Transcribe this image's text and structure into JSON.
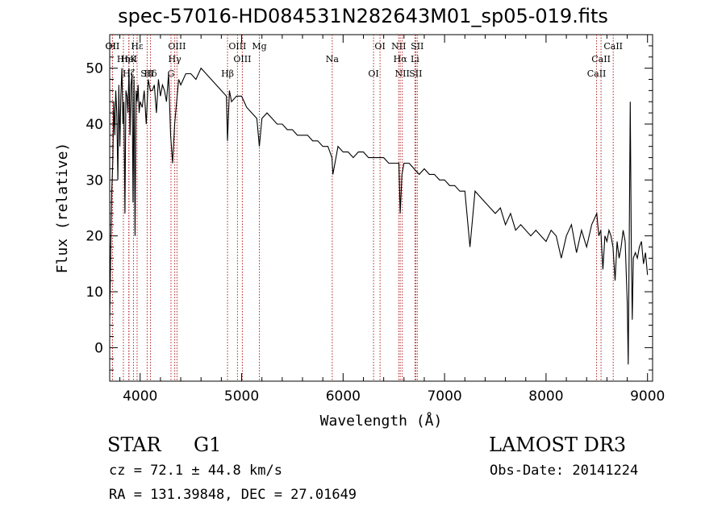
{
  "chart_data": {
    "type": "line",
    "title": "spec-57016-HD084531N282643M01_sp05-019.fits",
    "xlabel": "Wavelength (Å)",
    "ylabel": "Flux (relative)",
    "xlim": [
      3700,
      9050
    ],
    "ylim": [
      -6,
      56
    ],
    "xticks": [
      4000,
      5000,
      6000,
      7000,
      8000,
      9000
    ],
    "yticks": [
      0,
      10,
      20,
      30,
      40,
      50
    ],
    "spectrum": {
      "x": [
        3700,
        3710,
        3720,
        3730,
        3740,
        3750,
        3760,
        3770,
        3780,
        3790,
        3800,
        3810,
        3820,
        3830,
        3840,
        3850,
        3860,
        3870,
        3880,
        3890,
        3900,
        3910,
        3920,
        3930,
        3940,
        3950,
        3960,
        3970,
        3980,
        3990,
        4000,
        4020,
        4040,
        4060,
        4080,
        4100,
        4120,
        4140,
        4160,
        4180,
        4200,
        4220,
        4240,
        4260,
        4280,
        4300,
        4320,
        4340,
        4360,
        4380,
        4400,
        4450,
        4500,
        4550,
        4600,
        4650,
        4700,
        4750,
        4800,
        4850,
        4861,
        4880,
        4900,
        4950,
        5000,
        5050,
        5100,
        5150,
        5175,
        5200,
        5250,
        5300,
        5350,
        5400,
        5450,
        5500,
        5550,
        5600,
        5650,
        5700,
        5750,
        5800,
        5850,
        5890,
        5900,
        5950,
        6000,
        6050,
        6100,
        6150,
        6200,
        6250,
        6300,
        6350,
        6400,
        6450,
        6500,
        6550,
        6563,
        6580,
        6600,
        6650,
        6700,
        6750,
        6800,
        6850,
        6900,
        6950,
        7000,
        7050,
        7100,
        7150,
        7200,
        7250,
        7300,
        7350,
        7400,
        7450,
        7500,
        7550,
        7600,
        7650,
        7700,
        7750,
        7800,
        7850,
        7900,
        7950,
        8000,
        8050,
        8100,
        8150,
        8200,
        8250,
        8300,
        8350,
        8400,
        8450,
        8500,
        8520,
        8540,
        8560,
        8580,
        8600,
        8620,
        8640,
        8660,
        8680,
        8700,
        8720,
        8740,
        8760,
        8780,
        8800,
        8810,
        8820,
        8830,
        8840,
        8850,
        8860,
        8880,
        8900,
        8920,
        8940,
        8960,
        8980,
        9000
      ],
      "y": [
        5,
        18,
        28,
        33,
        44,
        38,
        46,
        42,
        30,
        47,
        36,
        45,
        50,
        40,
        44,
        24,
        46,
        45,
        42,
        50,
        38,
        47,
        49,
        26,
        48,
        20,
        46,
        44,
        47,
        42,
        44,
        43,
        46,
        40,
        48,
        46,
        46,
        47,
        42,
        48,
        45,
        47,
        46,
        44,
        49,
        38,
        33,
        40,
        44,
        48,
        47,
        49,
        49,
        48,
        50,
        49,
        48,
        47,
        46,
        45,
        37,
        46,
        44,
        45,
        45,
        43,
        42,
        41,
        36,
        41,
        42,
        41,
        40,
        40,
        39,
        39,
        38,
        38,
        38,
        37,
        37,
        36,
        36,
        34,
        31,
        36,
        35,
        35,
        34,
        35,
        35,
        34,
        34,
        34,
        34,
        33,
        33,
        33,
        24,
        31,
        33,
        33,
        32,
        31,
        32,
        31,
        31,
        30,
        30,
        29,
        29,
        28,
        28,
        18,
        28,
        27,
        26,
        25,
        24,
        25,
        22,
        24,
        21,
        22,
        21,
        20,
        21,
        20,
        19,
        21,
        20,
        16,
        20,
        22,
        17,
        21,
        18,
        22,
        24,
        20,
        21,
        14,
        20,
        19,
        21,
        20,
        18,
        12,
        19,
        16,
        18,
        21,
        19,
        8,
        -3,
        20,
        44,
        18,
        5,
        16,
        17,
        16,
        18,
        19,
        15,
        17,
        13
      ]
    },
    "lines": [
      {
        "label": "Hε",
        "x": 3970
      },
      {
        "label": "K",
        "x": 3934
      },
      {
        "label": "Hδ",
        "x": 4102
      },
      {
        "label": "OII",
        "x": 3727
      },
      {
        "label": "HeI",
        "x": 3889
      },
      {
        "label": "SII",
        "x": 4069
      },
      {
        "label": "OII",
        "x": 3727
      },
      {
        "label": "Hη",
        "x": 3835
      },
      {
        "label": "Hζ",
        "x": 3889
      },
      {
        "label": "OIII",
        "x": 4363
      },
      {
        "label": "Hγ",
        "x": 4341
      },
      {
        "label": "G",
        "x": 4304
      },
      {
        "label": "OIII",
        "x": 4959
      },
      {
        "label": "OIII",
        "x": 5007
      },
      {
        "label": "Hβ",
        "x": 4861
      },
      {
        "label": "Mg",
        "x": 5175
      },
      {
        "label": "Na",
        "x": 5893
      },
      {
        "label": "OI",
        "x": 6300
      },
      {
        "label": "OI",
        "x": 6364
      },
      {
        "label": "Hα",
        "x": 6563
      },
      {
        "label": "SII",
        "x": 6716
      },
      {
        "label": "NII",
        "x": 6548
      },
      {
        "label": "Li",
        "x": 6708
      },
      {
        "label": "NII",
        "x": 6583
      },
      {
        "label": "SII",
        "x": 6731
      },
      {
        "label": "CaII",
        "x": 8542
      },
      {
        "label": "CaII",
        "x": 8498
      },
      {
        "label": "CaII",
        "x": 8662
      }
    ]
  },
  "info": {
    "object_type": "STAR",
    "subclass": "G1",
    "survey": "LAMOST DR3",
    "cz": "cz = 72.1 ± 44.8 km/s",
    "obs_date": "Obs-Date: 20141224",
    "coords": "RA = 131.39848, DEC =  27.01649"
  }
}
